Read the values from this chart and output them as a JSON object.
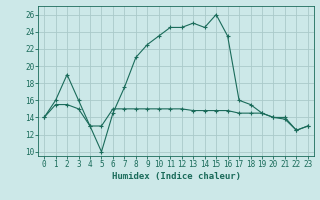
{
  "xlabel": "Humidex (Indice chaleur)",
  "background_color": "#cce8e8",
  "grid_color": "#aacaca",
  "line_color": "#1a6b5a",
  "xlim": [
    -0.5,
    23.5
  ],
  "ylim": [
    9.5,
    27.0
  ],
  "xticks": [
    0,
    1,
    2,
    3,
    4,
    5,
    6,
    7,
    8,
    9,
    10,
    11,
    12,
    13,
    14,
    15,
    16,
    17,
    18,
    19,
    20,
    21,
    22,
    23
  ],
  "yticks": [
    10,
    12,
    14,
    16,
    18,
    20,
    22,
    24,
    26
  ],
  "series1_x": [
    0,
    1,
    2,
    3,
    4,
    5,
    6,
    7,
    8,
    9,
    10,
    11,
    12,
    13,
    14,
    15,
    16,
    17,
    18,
    19,
    20,
    21,
    22,
    23
  ],
  "series1_y": [
    14,
    16,
    19,
    16,
    13,
    10,
    14.5,
    17.5,
    21,
    22.5,
    23.5,
    24.5,
    24.5,
    25,
    24.5,
    26,
    23.5,
    16,
    15.5,
    14.5,
    14,
    13.8,
    12.5,
    13
  ],
  "series2_x": [
    0,
    1,
    2,
    3,
    4,
    5,
    6,
    7,
    8,
    9,
    10,
    11,
    12,
    13,
    14,
    15,
    16,
    17,
    18,
    19,
    20,
    21,
    22,
    23
  ],
  "series2_y": [
    14,
    15.5,
    15.5,
    15,
    13,
    13,
    15,
    15,
    15,
    15,
    15,
    15,
    15,
    14.8,
    14.8,
    14.8,
    14.8,
    14.5,
    14.5,
    14.5,
    14,
    14,
    12.5,
    13
  ]
}
